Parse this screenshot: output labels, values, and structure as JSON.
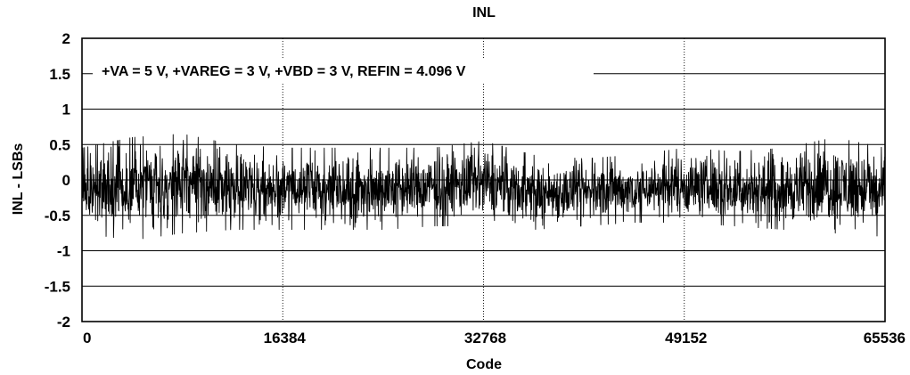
{
  "chart_data": {
    "type": "line",
    "title": "INL",
    "xlabel": "Code",
    "ylabel": "INL - LSBs",
    "annotation": "+VA = 5 V, +VAREG = 3 V, +VBD = 3 V, REFIN = 4.096 V",
    "xlim": [
      0,
      65536
    ],
    "ylim": [
      -2,
      2
    ],
    "x_ticks": [
      0,
      16384,
      32768,
      49152,
      65536
    ],
    "x_tick_labels": [
      "0",
      "16384",
      "32768",
      "49152",
      "65536"
    ],
    "y_ticks": [
      2,
      1.5,
      1,
      0.5,
      0,
      -0.5,
      -1,
      -1.5,
      -2
    ],
    "y_tick_labels": [
      "2",
      "1.5",
      "1",
      "0.5",
      "0",
      "-0.5",
      "-1",
      "-1.5",
      "-2"
    ],
    "grid": {
      "horizontal": "solid",
      "vertical": "dotted"
    },
    "legend": "none",
    "series": [
      {
        "color": "#000000",
        "envelope": {
          "x": [
            0,
            4096,
            8192,
            12288,
            16384,
            20480,
            24576,
            28672,
            32768,
            36864,
            40960,
            45056,
            49152,
            53248,
            57344,
            61440,
            65536
          ],
          "max": [
            0.45,
            0.6,
            0.65,
            0.5,
            0.45,
            0.45,
            0.45,
            0.45,
            0.55,
            0.35,
            0.3,
            0.35,
            0.45,
            0.4,
            0.45,
            0.6,
            0.45
          ],
          "min": [
            -0.75,
            -0.85,
            -0.75,
            -0.7,
            -0.7,
            -0.7,
            -0.7,
            -0.65,
            -0.65,
            -0.7,
            -0.65,
            -0.6,
            -0.6,
            -0.65,
            -0.7,
            -0.75,
            -0.8
          ]
        }
      }
    ]
  }
}
